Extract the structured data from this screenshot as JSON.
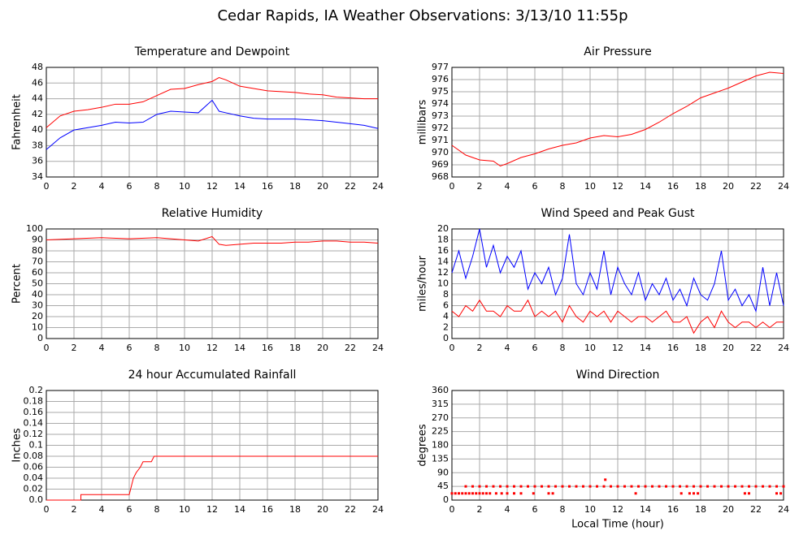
{
  "title": "Cedar Rapids, IA Weather Observations: 3/13/10 11:55p",
  "chart_data": [
    {
      "type": "line",
      "title": "Temperature and Dewpoint",
      "ylabel": "Fahrenheit",
      "xlim": [
        0,
        24
      ],
      "xticks": [
        0,
        2,
        4,
        6,
        8,
        10,
        12,
        14,
        16,
        18,
        20,
        22,
        24
      ],
      "ylim": [
        34,
        48
      ],
      "yticks": [
        34,
        36,
        38,
        40,
        42,
        44,
        46,
        48
      ],
      "grid": true,
      "x": [
        0,
        1,
        2,
        3,
        4,
        5,
        6,
        7,
        8,
        9,
        10,
        11,
        12,
        12.5,
        13,
        14,
        15,
        16,
        17,
        18,
        19,
        20,
        21,
        22,
        23,
        24
      ],
      "series": [
        {
          "color": "#ff0000",
          "values": [
            40.3,
            41.8,
            42.4,
            42.6,
            42.9,
            43.3,
            43.3,
            43.6,
            44.4,
            45.2,
            45.3,
            45.8,
            46.2,
            46.7,
            46.4,
            45.6,
            45.3,
            45.0,
            44.9,
            44.8,
            44.6,
            44.5,
            44.2,
            44.1,
            44.0,
            44.0
          ]
        },
        {
          "color": "#0000ff",
          "values": [
            37.5,
            39.0,
            40.0,
            40.3,
            40.6,
            41.0,
            40.9,
            41.0,
            42.0,
            42.4,
            42.3,
            42.2,
            43.8,
            42.4,
            42.2,
            41.8,
            41.5,
            41.4,
            41.4,
            41.4,
            41.3,
            41.2,
            41.0,
            40.8,
            40.6,
            40.2
          ]
        }
      ]
    },
    {
      "type": "line",
      "title": "Air Pressure",
      "ylabel": "millibars",
      "xlim": [
        0,
        24
      ],
      "xticks": [
        0,
        2,
        4,
        6,
        8,
        10,
        12,
        14,
        16,
        18,
        20,
        22,
        24
      ],
      "ylim": [
        968,
        977
      ],
      "yticks": [
        968,
        969,
        970,
        971,
        972,
        973,
        974,
        975,
        976,
        977
      ],
      "grid": true,
      "x": [
        0,
        1,
        2,
        3,
        3.5,
        4,
        5,
        6,
        7,
        8,
        9,
        10,
        11,
        12,
        13,
        14,
        15,
        16,
        17,
        18,
        19,
        20,
        21,
        22,
        23,
        24
      ],
      "series": [
        {
          "color": "#ff0000",
          "values": [
            970.6,
            969.8,
            969.4,
            969.3,
            968.9,
            969.1,
            969.6,
            969.9,
            970.3,
            970.6,
            970.8,
            971.2,
            971.4,
            971.3,
            971.5,
            971.9,
            972.5,
            973.2,
            973.8,
            974.5,
            974.9,
            975.3,
            975.8,
            976.3,
            976.6,
            976.5
          ]
        }
      ]
    },
    {
      "type": "line",
      "title": "Relative Humidity",
      "ylabel": "Percent",
      "xlim": [
        0,
        24
      ],
      "xticks": [
        0,
        2,
        4,
        6,
        8,
        10,
        12,
        14,
        16,
        18,
        20,
        22,
        24
      ],
      "ylim": [
        0,
        100
      ],
      "yticks": [
        0,
        10,
        20,
        30,
        40,
        50,
        60,
        70,
        80,
        90,
        100
      ],
      "grid": true,
      "x": [
        0,
        2,
        4,
        6,
        8,
        10,
        11,
        12,
        12.5,
        13,
        14,
        15,
        16,
        17,
        18,
        19,
        20,
        21,
        22,
        23,
        24
      ],
      "series": [
        {
          "color": "#ff0000",
          "values": [
            90,
            91,
            92,
            91,
            92,
            90,
            89,
            93,
            86,
            85,
            86,
            87,
            87,
            87,
            88,
            88,
            89,
            89,
            88,
            88,
            87
          ]
        }
      ]
    },
    {
      "type": "line",
      "title": "Wind Speed and Peak Gust",
      "ylabel": "miles/hour",
      "xlim": [
        0,
        24
      ],
      "xticks": [
        0,
        2,
        4,
        6,
        8,
        10,
        12,
        14,
        16,
        18,
        20,
        22,
        24
      ],
      "ylim": [
        0,
        20
      ],
      "yticks": [
        0,
        2,
        4,
        6,
        8,
        10,
        12,
        14,
        16,
        18,
        20
      ],
      "grid": true,
      "x": [
        0,
        0.5,
        1,
        1.5,
        2,
        2.5,
        3,
        3.5,
        4,
        4.5,
        5,
        5.5,
        6,
        6.5,
        7,
        7.5,
        8,
        8.5,
        9,
        9.5,
        10,
        10.5,
        11,
        11.5,
        12,
        12.5,
        13,
        13.5,
        14,
        14.5,
        15,
        15.5,
        16,
        16.5,
        17,
        17.5,
        18,
        18.5,
        19,
        19.5,
        20,
        20.5,
        21,
        21.5,
        22,
        22.5,
        23,
        23.5,
        24
      ],
      "series": [
        {
          "color": "#0000ff",
          "values": [
            12,
            16,
            11,
            15,
            20,
            13,
            17,
            12,
            15,
            13,
            16,
            9,
            12,
            10,
            13,
            8,
            11,
            19,
            10,
            8,
            12,
            9,
            16,
            8,
            13,
            10,
            8,
            12,
            7,
            10,
            8,
            11,
            7,
            9,
            6,
            11,
            8,
            7,
            10,
            16,
            7,
            9,
            6,
            8,
            5,
            13,
            6,
            12,
            6
          ]
        },
        {
          "color": "#ff0000",
          "values": [
            5,
            4,
            6,
            5,
            7,
            5,
            5,
            4,
            6,
            5,
            5,
            7,
            4,
            5,
            4,
            5,
            3,
            6,
            4,
            3,
            5,
            4,
            5,
            3,
            5,
            4,
            3,
            4,
            4,
            3,
            4,
            5,
            3,
            3,
            4,
            1,
            3,
            4,
            2,
            5,
            3,
            2,
            3,
            3,
            2,
            3,
            2,
            3,
            3
          ]
        }
      ]
    },
    {
      "type": "line",
      "title": "24 hour Accumulated Rainfall",
      "ylabel": "Inches",
      "xlim": [
        0,
        24
      ],
      "xticks": [
        0,
        2,
        4,
        6,
        8,
        10,
        12,
        14,
        16,
        18,
        20,
        22,
        24
      ],
      "ylim": [
        0,
        0.2
      ],
      "yticks": [
        {
          "value": 0,
          "label": "0.0"
        },
        0.02,
        0.04,
        0.06,
        0.08,
        0.1,
        0.12,
        0.14,
        0.16,
        0.18,
        0.2
      ],
      "grid": true,
      "x": [
        0,
        2.5,
        2.5,
        6,
        6.1,
        6.3,
        6.5,
        6.8,
        7,
        7.6,
        7.8,
        8,
        24
      ],
      "series": [
        {
          "color": "#ff0000",
          "values": [
            0,
            0,
            0.01,
            0.01,
            0.02,
            0.04,
            0.05,
            0.06,
            0.07,
            0.07,
            0.08,
            0.08,
            0.08
          ]
        }
      ]
    },
    {
      "type": "scatter",
      "title": "Wind Direction",
      "ylabel": "degrees",
      "xlabel": "Local Time (hour)",
      "xlim": [
        0,
        24
      ],
      "xticks": [
        0,
        2,
        4,
        6,
        8,
        10,
        12,
        14,
        16,
        18,
        20,
        22,
        24
      ],
      "ylim": [
        0,
        360
      ],
      "yticks": [
        0,
        45,
        90,
        135,
        180,
        225,
        270,
        315,
        360
      ],
      "grid": true,
      "color": "#ff0000",
      "x": [
        1,
        1.5,
        2,
        2.5,
        3,
        3.5,
        4,
        4.5,
        5,
        5.5,
        6,
        6.5,
        7,
        7.5,
        8,
        8.5,
        9,
        9.5,
        10,
        10.5,
        11,
        11.5,
        12,
        12.5,
        13,
        13.5,
        14,
        14.5,
        15,
        15.5,
        16,
        16.5,
        17,
        17.5,
        18,
        18.5,
        19,
        19.5,
        20,
        20.5,
        21,
        21.5,
        22,
        22.5,
        23,
        23.5,
        24,
        0,
        0.25,
        0.5,
        0.75,
        1,
        1.25,
        1.5,
        1.75,
        2,
        2.25,
        2.5,
        2.75,
        3.2,
        3.6,
        4,
        4.5,
        5,
        5.9,
        7,
        7.3,
        13.3,
        16.6,
        17.2,
        17.5,
        17.8,
        21.2,
        21.5,
        23.5,
        23.8,
        11.1
      ],
      "values": [
        45,
        45,
        45,
        45,
        45,
        45,
        45,
        45,
        45,
        45,
        45,
        45,
        45,
        45,
        45,
        45,
        45,
        45,
        45,
        45,
        45,
        45,
        45,
        45,
        45,
        45,
        45,
        45,
        45,
        45,
        45,
        45,
        45,
        45,
        45,
        45,
        45,
        45,
        45,
        45,
        45,
        45,
        45,
        45,
        45,
        45,
        45,
        22,
        22,
        22,
        22,
        22,
        22,
        22,
        22,
        22,
        22,
        22,
        22,
        22,
        22,
        22,
        22,
        22,
        22,
        22,
        22,
        22,
        22,
        22,
        22,
        22,
        22,
        22,
        22,
        22,
        67
      ]
    }
  ]
}
